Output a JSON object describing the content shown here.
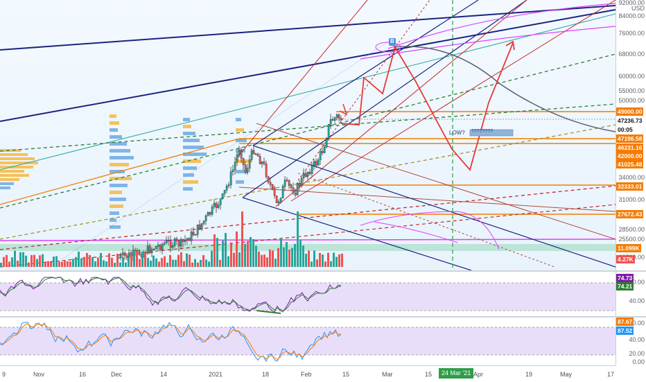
{
  "price_axis": {
    "currency": "USD",
    "ticks": [
      "92000.00",
      "84000.00",
      "76000.00",
      "68000.00",
      "60000.00",
      "55000.00",
      "50000.00",
      "34000.00",
      "31000.00",
      "28500.00",
      "25500.00",
      "23500.00"
    ],
    "tags": [
      {
        "text": "49000.00",
        "color": "#f57c00"
      },
      {
        "text": "47236.73",
        "color": "#ffffff"
      },
      {
        "text": "00:05",
        "color": "#ffffff"
      },
      {
        "text": "47196.58",
        "color": "#f57c00"
      },
      {
        "text": "46231.16",
        "color": "#f57c00"
      },
      {
        "text": "42000.00",
        "color": "#f57c00"
      },
      {
        "text": "41025.48",
        "color": "#f57c00"
      },
      {
        "text": "32333.01",
        "color": "#f57c00"
      },
      {
        "text": "27672.43",
        "color": "#f57c00"
      },
      {
        "text": "11.099K",
        "color": "#f57c00"
      },
      {
        "text": "4.27K",
        "color": "#ef5350"
      }
    ]
  },
  "rsi_axis": {
    "ticks": [
      "80.00",
      "40.00"
    ],
    "tags": [
      {
        "text": "74.73",
        "color": "#7b1fa2"
      },
      {
        "text": "74.21",
        "color": "#2e7d32"
      }
    ]
  },
  "stoch_axis": {
    "ticks": [
      "80.00",
      "40.00",
      "20.00",
      "0.00"
    ],
    "tags": [
      {
        "text": "87.67",
        "color": "#f57c00"
      },
      {
        "text": "87.52",
        "color": "#2196f3"
      }
    ]
  },
  "time_axis": {
    "labels": [
      "9",
      "Nov",
      "16",
      "Dec",
      "14",
      "2021",
      "18",
      "Feb",
      "15",
      "Mar",
      "15",
      "Apr",
      "19",
      "May",
      "17"
    ],
    "highlight": "24 Mar '21"
  },
  "annotations": {
    "box_text": "????????",
    "low_text": "LOW?",
    "marker_text": "B"
  },
  "colors": {
    "up": "#26a69a",
    "down": "#ef5350",
    "accent_orange": "#f57c00",
    "trend_navy": "#1a237e",
    "forecast_red": "#e53935",
    "magenta": "#e040fb"
  }
}
